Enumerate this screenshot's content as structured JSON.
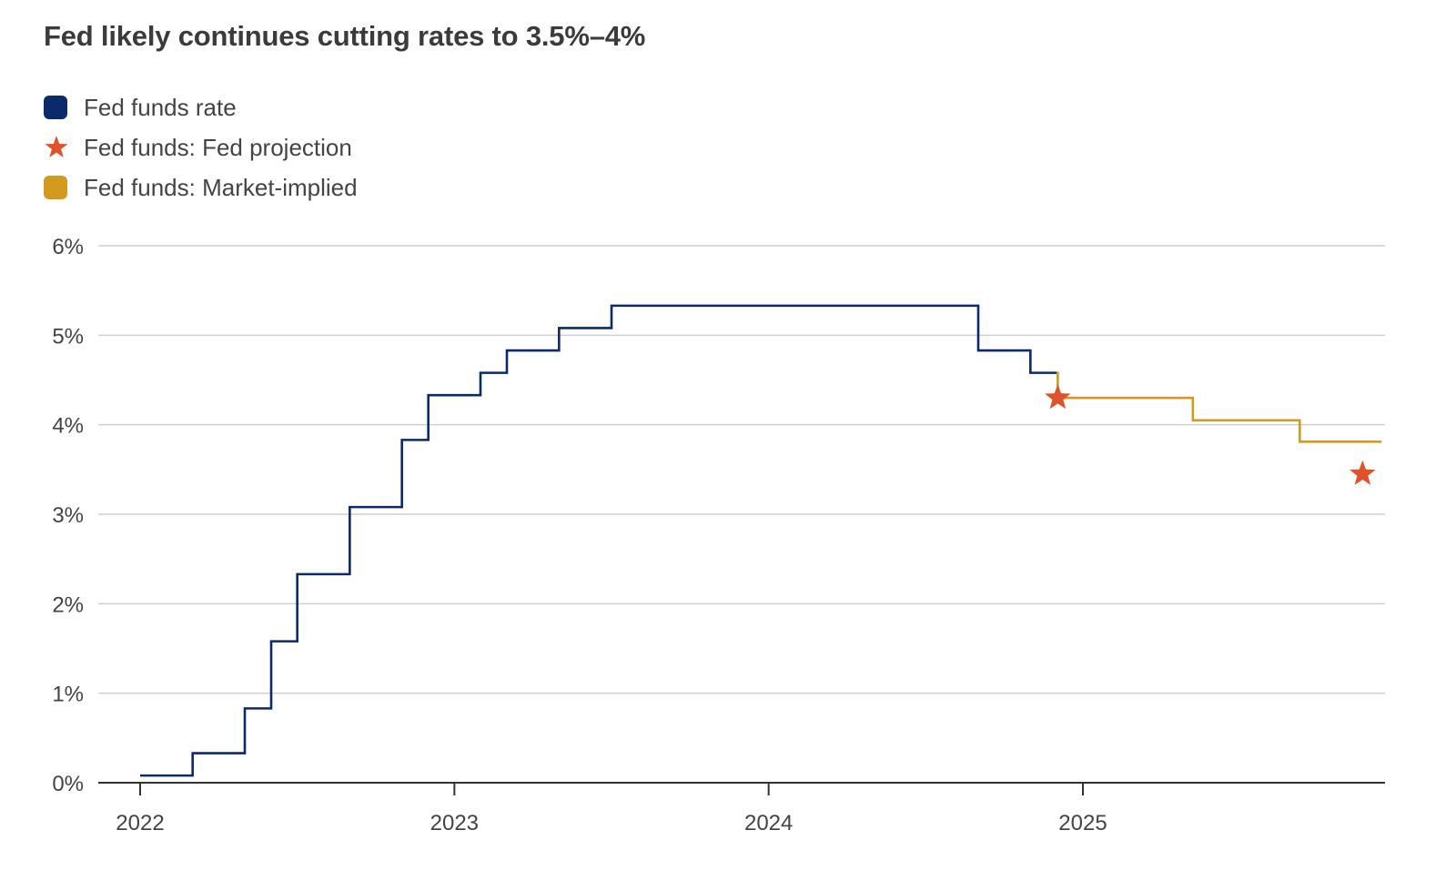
{
  "colors": {
    "fed_funds_rate": "#0b2a6b",
    "fed_projection": "#e0532a",
    "market_implied": "#d49a1f",
    "grid": "#cfcfcf",
    "axis": "#333333"
  },
  "chart_data": {
    "type": "line",
    "title": "Fed likely continues cutting rates to 3.5%–4%",
    "xlabel": "",
    "ylabel": "",
    "xlim": [
      2022.0,
      2025.97
    ],
    "ylim": [
      0,
      6
    ],
    "yticks": [
      0,
      1,
      2,
      3,
      4,
      5,
      6
    ],
    "ytick_labels": [
      "0%",
      "1%",
      "2%",
      "3%",
      "4%",
      "5%",
      "6%"
    ],
    "xticks": [
      2022,
      2023,
      2024,
      2025
    ],
    "xtick_labels": [
      "2022",
      "2023",
      "2024",
      "2025"
    ],
    "grid": true,
    "legend": [
      {
        "name": "Fed funds rate",
        "marker": "square"
      },
      {
        "name": "Fed funds: Fed projection",
        "marker": "star"
      },
      {
        "name": "Fed funds: Market-implied",
        "marker": "square"
      }
    ],
    "series": [
      {
        "name": "Fed funds rate",
        "style": "step",
        "x": [
          2022.0,
          2022.167,
          2022.333,
          2022.417,
          2022.5,
          2022.667,
          2022.833,
          2022.917,
          2023.083,
          2023.167,
          2023.333,
          2023.5,
          2024.667,
          2024.833,
          2024.917
        ],
        "values": [
          0.08,
          0.33,
          0.83,
          1.58,
          2.33,
          3.08,
          3.83,
          4.33,
          4.58,
          4.83,
          5.08,
          5.33,
          4.83,
          4.58,
          4.58
        ]
      },
      {
        "name": "Fed funds: Market-implied",
        "style": "step",
        "x": [
          2024.917,
          2024.92,
          2025.35,
          2025.69,
          2025.95
        ],
        "values": [
          4.58,
          4.3,
          4.05,
          3.81,
          3.81
        ]
      },
      {
        "name": "Fed funds: Fed projection",
        "style": "marker",
        "x": [
          2024.92,
          2025.89
        ],
        "values": [
          4.3,
          3.45
        ]
      }
    ]
  }
}
